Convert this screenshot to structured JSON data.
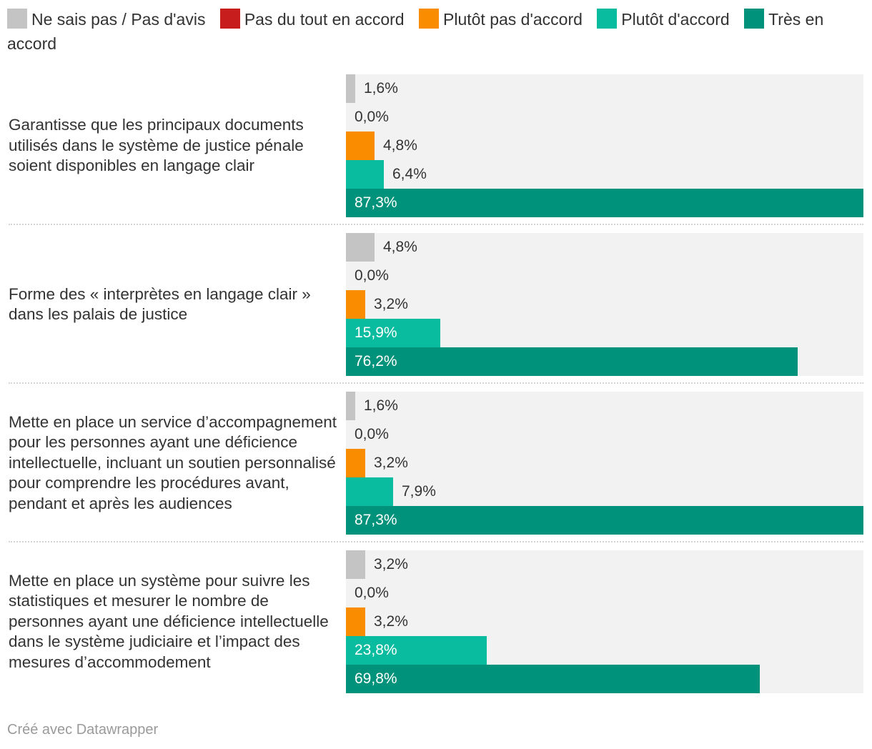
{
  "chart_data": {
    "type": "bar",
    "orientation": "horizontal-grouped",
    "legend_position": "top",
    "xlim": [
      0,
      87.3
    ],
    "series": [
      {
        "name": "Ne sais pas / Pas d'avis",
        "color": "#c4c4c4",
        "values": [
          1.6,
          4.8,
          1.6,
          3.2
        ]
      },
      {
        "name": "Pas du tout en accord",
        "color": "#c71e1d",
        "values": [
          0.0,
          0.0,
          0.0,
          0.0
        ]
      },
      {
        "name": "Plutôt pas d'accord",
        "color": "#fa8c00",
        "values": [
          4.8,
          3.2,
          3.2,
          3.2
        ]
      },
      {
        "name": "Plutôt d'accord",
        "color": "#09bb9f",
        "values": [
          6.4,
          15.9,
          7.9,
          23.8
        ]
      },
      {
        "name": "Très en accord",
        "color": "#00927a",
        "values": [
          87.3,
          76.2,
          87.3,
          69.8
        ]
      }
    ],
    "categories": [
      "Garantisse que les principaux documents utilisés dans le système de justice pénale soient disponibles en langage clair",
      "Forme des « interprètes en langage clair » dans les palais de justice",
      "Mette en place un service d’accompagnement pour les personnes ayant une déficience intellectuelle, incluant un soutien personnalisé pour comprendre les procédures avant, pendant et après les audiences",
      "Mette en place un système pour suivre les statistiques et mesurer le nombre de personnes ayant une déficience intellectuelle dans le système judiciaire et l’impact des mesures d’accommodement"
    ],
    "value_labels": [
      [
        "1,6%",
        "0,0%",
        "4,8%",
        "6,4%",
        "87,3%"
      ],
      [
        "4,8%",
        "0,0%",
        "3,2%",
        "15,9%",
        "76,2%"
      ],
      [
        "1,6%",
        "0,0%",
        "3,2%",
        "7,9%",
        "87,3%"
      ],
      [
        "3,2%",
        "0,0%",
        "3,2%",
        "23,8%",
        "69,8%"
      ]
    ]
  },
  "footer": {
    "credit": "Créé avec Datawrapper"
  }
}
